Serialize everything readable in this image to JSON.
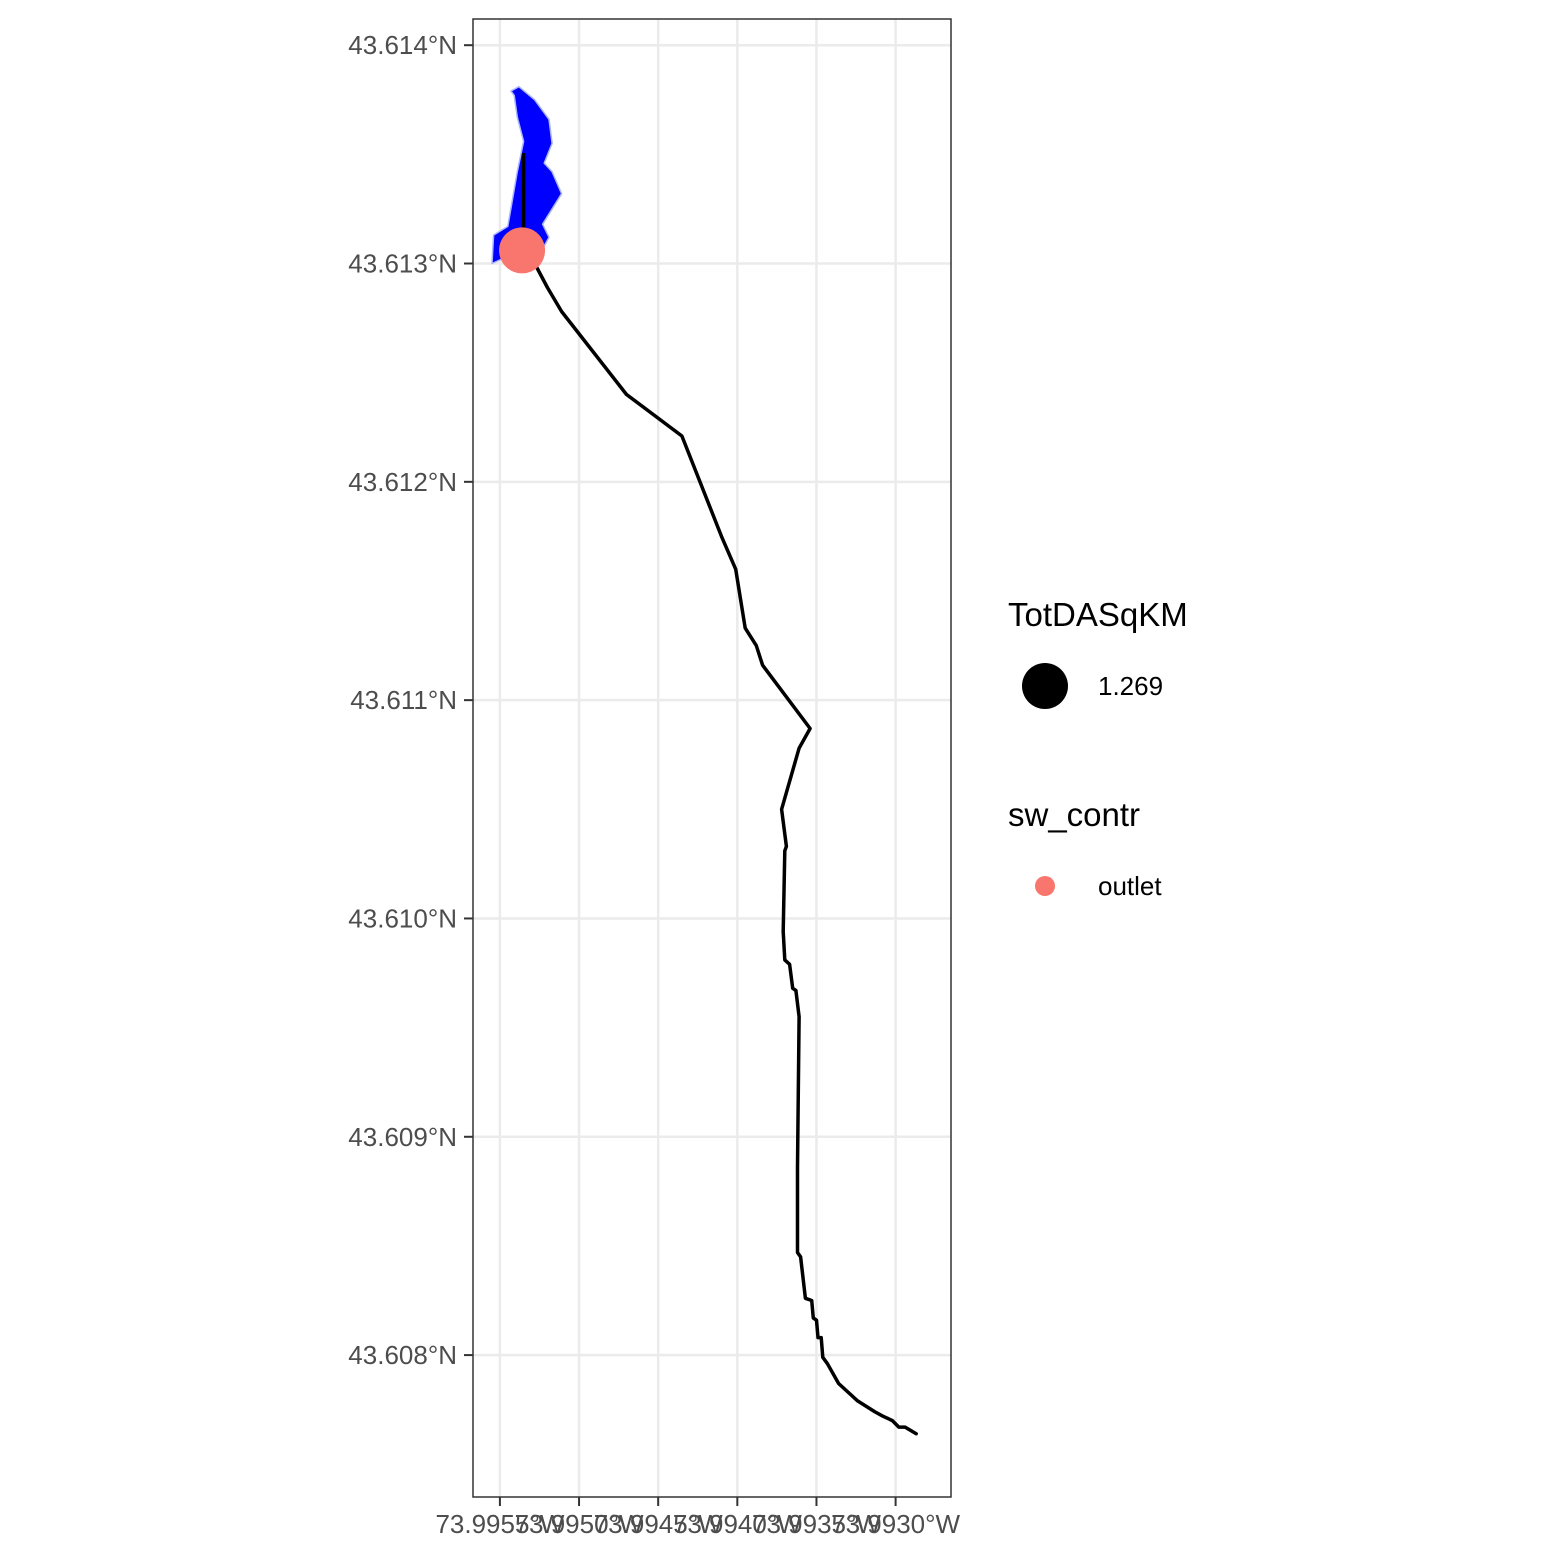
{
  "chart_data": {
    "type": "map",
    "x_axis": {
      "ticks": [
        -73.9955,
        -73.995,
        -73.9945,
        -73.994,
        -73.9935,
        -73.993
      ],
      "tick_labels": [
        "73.9955°W",
        "73.9950°W",
        "73.9945°W",
        "73.9940°W",
        "73.9935°W",
        "73.9930°W"
      ],
      "range": [
        -73.99567,
        -73.99265
      ]
    },
    "y_axis": {
      "ticks": [
        43.614,
        43.613,
        43.612,
        43.611,
        43.61,
        43.609,
        43.608
      ],
      "tick_labels": [
        "43.614°N",
        "43.613°N",
        "43.612°N",
        "43.611°N",
        "43.610°N",
        "43.609°N",
        "43.608°N"
      ],
      "range": [
        43.60735,
        43.61412
      ]
    },
    "grid": true,
    "theme": "bw",
    "layers": {
      "catchment": {
        "fill": "#0000ff",
        "stroke": "#aab4ff",
        "polygon": [
          [
            -73.99543,
            43.61379
          ],
          [
            -73.99538,
            43.61381
          ],
          [
            -73.99528,
            43.61375
          ],
          [
            -73.99519,
            43.61366
          ],
          [
            -73.99517,
            43.61355
          ],
          [
            -73.99522,
            43.61346
          ],
          [
            -73.99517,
            43.61342
          ],
          [
            -73.99511,
            43.61332
          ],
          [
            -73.99523,
            43.61318
          ],
          [
            -73.99519,
            43.61312
          ],
          [
            -73.99522,
            43.61308
          ],
          [
            -73.99532,
            43.61306
          ],
          [
            -73.99546,
            43.61303
          ],
          [
            -73.99555,
            43.613
          ],
          [
            -73.99554,
            43.61313
          ],
          [
            -73.99545,
            43.61317
          ],
          [
            -73.99539,
            43.61342
          ],
          [
            -73.99535,
            43.61356
          ],
          [
            -73.99539,
            43.61367
          ],
          [
            -73.99541,
            43.61377
          ]
        ]
      },
      "flowline": {
        "color": "#000000",
        "points": [
          [
            -73.99535,
            43.6135
          ],
          [
            -73.99535,
            43.61314
          ],
          [
            -73.99536,
            43.61303
          ],
          [
            -73.99528,
            43.613
          ],
          [
            -73.9952,
            43.61289
          ],
          [
            -73.99511,
            43.61278
          ],
          [
            -73.9947,
            43.6124
          ],
          [
            -73.99435,
            43.61221
          ],
          [
            -73.9941,
            43.61175
          ],
          [
            -73.99401,
            43.6116
          ],
          [
            -73.99395,
            43.61133
          ],
          [
            -73.99388,
            43.61125
          ],
          [
            -73.99384,
            43.61116
          ],
          [
            -73.99354,
            43.61087
          ],
          [
            -73.99361,
            43.61078
          ],
          [
            -73.99372,
            43.6105
          ],
          [
            -73.99369,
            43.61033
          ],
          [
            -73.9937,
            43.61031
          ],
          [
            -73.99371,
            43.60994
          ],
          [
            -73.9937,
            43.60981
          ],
          [
            -73.99367,
            43.60979
          ],
          [
            -73.99365,
            43.60968
          ],
          [
            -73.99363,
            43.60967
          ],
          [
            -73.99361,
            43.60955
          ],
          [
            -73.99362,
            43.60886
          ],
          [
            -73.99362,
            43.60885
          ],
          [
            -73.99362,
            43.60847
          ],
          [
            -73.9936,
            43.60845
          ],
          [
            -73.99357,
            43.60826
          ],
          [
            -73.99353,
            43.60825
          ],
          [
            -73.99352,
            43.60817
          ],
          [
            -73.9935,
            43.60816
          ],
          [
            -73.99349,
            43.60808
          ],
          [
            -73.99347,
            43.60808
          ],
          [
            -73.99346,
            43.60799
          ],
          [
            -73.99343,
            43.60796
          ],
          [
            -73.99336,
            43.60787
          ],
          [
            -73.99324,
            43.60779
          ],
          [
            -73.99313,
            43.60774
          ],
          [
            -73.99308,
            43.60772
          ],
          [
            -73.99302,
            43.6077
          ],
          [
            -73.99298,
            43.60767
          ],
          [
            -73.99294,
            43.60767
          ],
          [
            -73.99287,
            43.60764
          ]
        ]
      },
      "outlet": {
        "lon": -73.99536,
        "lat": 43.61306,
        "color": "#f8766d"
      }
    },
    "legends": [
      {
        "title": "TotDASqKM",
        "items": [
          {
            "label": "1.269",
            "symbol": "circle-large",
            "color": "#000000"
          }
        ]
      },
      {
        "title": "sw_contr",
        "items": [
          {
            "label": "outlet",
            "symbol": "circle-small",
            "color": "#f8766d"
          }
        ]
      }
    ]
  }
}
